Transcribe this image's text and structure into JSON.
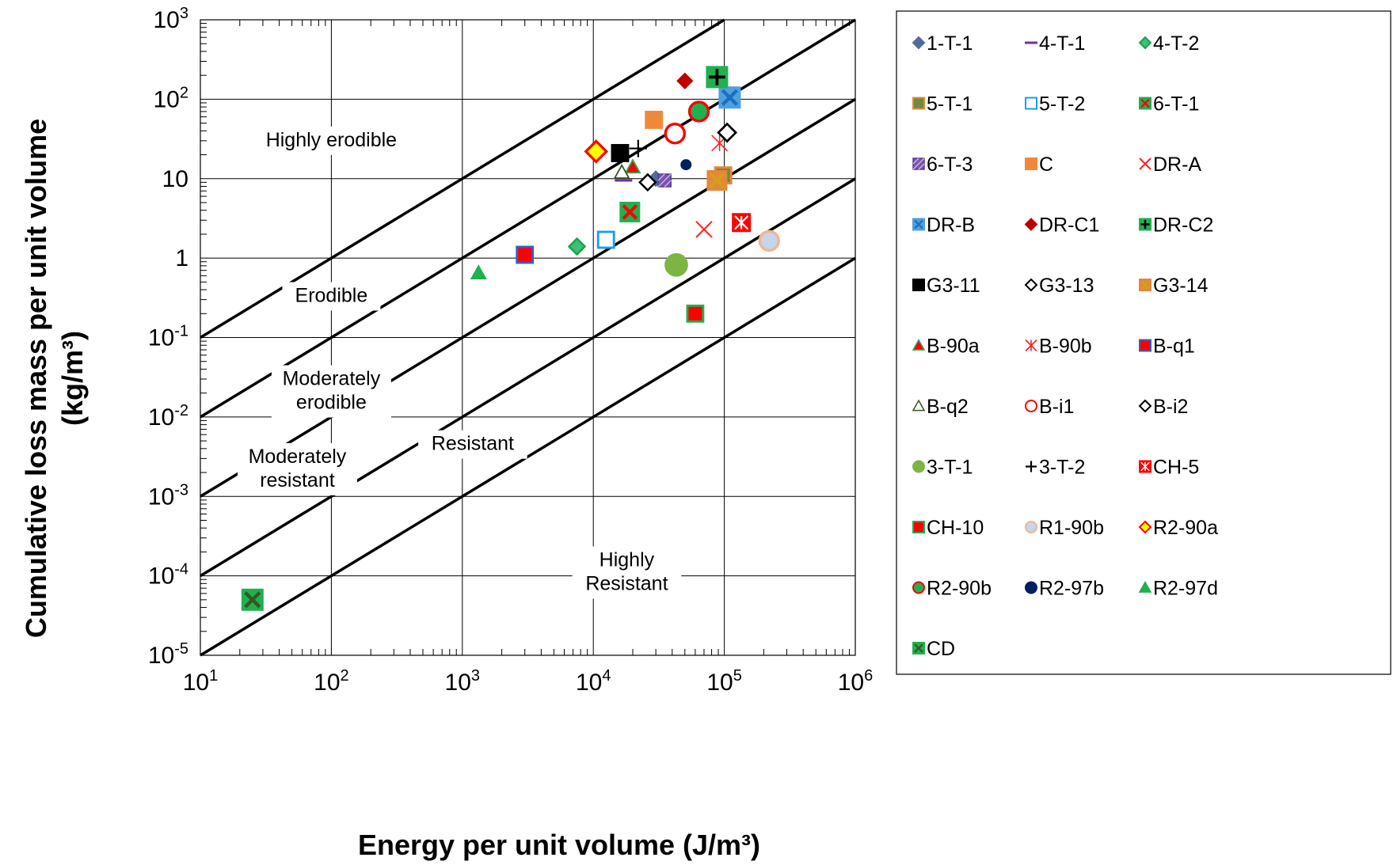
{
  "chart_data": {
    "type": "scatter",
    "x_scale": "log",
    "y_scale": "log",
    "xlabel": "Energy per unit volume (J/m³)",
    "ylabel_line1": "Cumulative loss mass per unit volume",
    "ylabel_line2": "(kg/m³)",
    "xlim": [
      10,
      1000000
    ],
    "ylim": [
      1e-05,
      1000
    ],
    "grid": true,
    "legend_position": "right",
    "x_ticks": [
      {
        "value": 10,
        "label": "10",
        "exp": "1"
      },
      {
        "value": 100,
        "label": "10",
        "exp": "2"
      },
      {
        "value": 1000,
        "label": "10",
        "exp": "3"
      },
      {
        "value": 10000,
        "label": "10",
        "exp": "4"
      },
      {
        "value": 100000,
        "label": "10",
        "exp": "5"
      },
      {
        "value": 1000000,
        "label": "10",
        "exp": "6"
      }
    ],
    "y_ticks": [
      {
        "value": 1000,
        "label": "10",
        "exp": "3"
      },
      {
        "value": 100,
        "label": "10",
        "exp": "2"
      },
      {
        "value": 10,
        "label": "10",
        "exp": ""
      },
      {
        "value": 1,
        "label": "1",
        "exp": ""
      },
      {
        "value": 0.1,
        "label": "10",
        "exp": "-1"
      },
      {
        "value": 0.01,
        "label": "10",
        "exp": "-2"
      },
      {
        "value": 0.001,
        "label": "10",
        "exp": "-3"
      },
      {
        "value": 0.0001,
        "label": "10",
        "exp": "-4"
      },
      {
        "value": 1e-05,
        "label": "10",
        "exp": "-5"
      }
    ],
    "boundary_lines_y_at_x10": [
      0.1,
      0.01,
      0.001,
      0.0001,
      1e-05
    ],
    "zones": [
      {
        "label": "Highly erodible",
        "lines": [
          "Highly erodible"
        ],
        "x": 100,
        "y": 30
      },
      {
        "label": "Erodible",
        "lines": [
          "Erodible"
        ],
        "x": 100,
        "y": 0.33
      },
      {
        "label": "Moderately erodible",
        "lines": [
          "Moderately",
          "erodible"
        ],
        "x": 100,
        "y": 0.021
      },
      {
        "label": "Moderately resistant",
        "lines": [
          "Moderately",
          "resistant"
        ],
        "x": 55,
        "y": 0.0022
      },
      {
        "label": "Resistant",
        "lines": [
          "Resistant"
        ],
        "x": 1200,
        "y": 0.0045
      },
      {
        "label": "Highly Resistant",
        "lines": [
          "Highly",
          "Resistant"
        ],
        "x": 18000,
        "y": 0.00011
      }
    ],
    "series": [
      {
        "name": "1-T-1",
        "marker": "diamond",
        "fill": "#4F6C9E",
        "stroke": "#4F6C9E",
        "points": [
          [
            30000,
            10
          ]
        ]
      },
      {
        "name": "4-T-1",
        "marker": "dash",
        "fill": "#7030A0",
        "stroke": "#7030A0",
        "points": [
          [
            17000,
            9.5
          ]
        ]
      },
      {
        "name": "4-T-2",
        "marker": "diamond",
        "fill": "#3DBF75",
        "stroke": "#1BA34B",
        "points": [
          [
            7500,
            1.4
          ]
        ]
      },
      {
        "name": "5-T-1",
        "marker": "square",
        "fill": "#6F8A3A",
        "stroke": "#E3873C",
        "points": [
          [
            98000,
            11
          ]
        ]
      },
      {
        "name": "5-T-2",
        "marker": "square",
        "fill": "#FFFFFF",
        "stroke": "#1E9BE8",
        "points": [
          [
            12500,
            1.7
          ]
        ]
      },
      {
        "name": "6-T-1",
        "marker": "square-x",
        "fill": "#21B050",
        "stroke": "#FF0000",
        "points": [
          [
            19000,
            3.8
          ]
        ]
      },
      {
        "name": "6-T-3",
        "marker": "square-hatch",
        "fill": "#7B52B0",
        "stroke": "#7B52B0",
        "points": [
          [
            35000,
            9.5
          ]
        ]
      },
      {
        "name": "C",
        "marker": "square",
        "fill": "#F0883A",
        "stroke": "#F0883A",
        "points": [
          [
            29000,
            55
          ]
        ]
      },
      {
        "name": "DR-A",
        "marker": "x",
        "fill": "none",
        "stroke": "#FF2020",
        "points": [
          [
            70000,
            2.3
          ]
        ]
      },
      {
        "name": "DR-B",
        "marker": "square-x",
        "fill": "#4FA0DC",
        "stroke": "#1A6FC4",
        "points": [
          [
            110000,
            105
          ]
        ]
      },
      {
        "name": "DR-C1",
        "marker": "diamond",
        "fill": "#C00000",
        "stroke": "#C00000",
        "points": [
          [
            50000,
            170
          ]
        ]
      },
      {
        "name": "DR-C2",
        "marker": "square-plus",
        "fill": "#21B050",
        "stroke": "#000000",
        "points": [
          [
            88000,
            190
          ]
        ]
      },
      {
        "name": "G3-11",
        "marker": "square",
        "fill": "#000000",
        "stroke": "#000000",
        "points": [
          [
            16000,
            21
          ]
        ]
      },
      {
        "name": "G3-13",
        "marker": "diamond",
        "fill": "#FFFFFF",
        "stroke": "#000000",
        "points": [
          [
            26000,
            9
          ]
        ]
      },
      {
        "name": "G3-14",
        "marker": "square-x",
        "fill": "#E3873C",
        "stroke": "#D4A017",
        "points": [
          [
            88000,
            9.5
          ]
        ]
      },
      {
        "name": "B-90a",
        "marker": "triangle",
        "fill": "#FF0000",
        "stroke": "#21B050",
        "points": [
          [
            20000,
            14
          ]
        ]
      },
      {
        "name": "B-90b",
        "marker": "asterisk",
        "fill": "none",
        "stroke": "#FF2020",
        "points": [
          [
            92000,
            28
          ]
        ]
      },
      {
        "name": "B-q1",
        "marker": "square",
        "fill": "#FF0000",
        "stroke": "#3560C0",
        "points": [
          [
            3000,
            1.1
          ]
        ]
      },
      {
        "name": "B-q2",
        "marker": "triangle",
        "fill": "#FFFFFF",
        "stroke": "#375623",
        "points": [
          [
            16500,
            12
          ]
        ]
      },
      {
        "name": "B-i1",
        "marker": "circle",
        "fill": "#FFFFFF",
        "stroke": "#FF0000",
        "points": [
          [
            42000,
            37
          ]
        ]
      },
      {
        "name": "B-i2",
        "marker": "diamond",
        "fill": "#FFFFFF",
        "stroke": "#000000",
        "points": [
          [
            105000,
            38
          ]
        ]
      },
      {
        "name": "3-T-1",
        "marker": "circle",
        "fill": "#7DB544",
        "stroke": "#7DB544",
        "points": [
          [
            43000,
            0.82
          ]
        ]
      },
      {
        "name": "3-T-2",
        "marker": "plus",
        "fill": "none",
        "stroke": "#000000",
        "points": [
          [
            22000,
            24
          ]
        ]
      },
      {
        "name": "CH-5",
        "marker": "square-asterisk",
        "fill": "#FF0000",
        "stroke": "#FFFFFF",
        "points": [
          [
            135000,
            2.8
          ]
        ]
      },
      {
        "name": "CH-10",
        "marker": "square",
        "fill": "#FF0000",
        "stroke": "#21B050",
        "points": [
          [
            60000,
            0.2
          ]
        ]
      },
      {
        "name": "R1-90b",
        "marker": "circle",
        "fill": "#C5D5EC",
        "stroke": "#F2B48F",
        "points": [
          [
            220000,
            1.65
          ]
        ]
      },
      {
        "name": "R2-90a",
        "marker": "diamond",
        "fill": "#FFFF00",
        "stroke": "#FF0000",
        "points": [
          [
            10500,
            22
          ]
        ]
      },
      {
        "name": "R2-90b",
        "marker": "circle",
        "fill": "#21B050",
        "stroke": "#FF0000",
        "points": [
          [
            64000,
            70
          ]
        ]
      },
      {
        "name": "R2-97b",
        "marker": "circle",
        "fill": "#002060",
        "stroke": "#002060",
        "points": [
          [
            51000,
            15
          ]
        ]
      },
      {
        "name": "R2-97d",
        "marker": "triangle",
        "fill": "#21B050",
        "stroke": "#21B050",
        "points": [
          [
            1330,
            0.65
          ]
        ]
      },
      {
        "name": "CD",
        "marker": "square-x",
        "fill": "#21B050",
        "stroke": "#375623",
        "points": [
          [
            25,
            5e-05
          ]
        ]
      }
    ]
  }
}
